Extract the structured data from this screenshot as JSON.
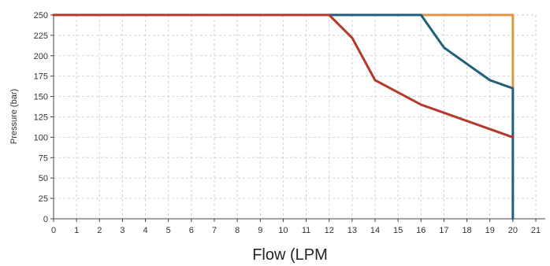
{
  "chart_data": {
    "type": "line",
    "title": "",
    "xlabel": "Flow (LPM",
    "ylabel": "Pressure (bar)",
    "xlim": [
      0,
      21
    ],
    "ylim": [
      0,
      250
    ],
    "x_ticks": [
      "0",
      "1",
      "2",
      "3",
      "4",
      "5",
      "6",
      "7",
      "8",
      "9",
      "10",
      "11",
      "12",
      "13",
      "14",
      "15",
      "16",
      "17",
      "18",
      "19",
      "20",
      "21"
    ],
    "y_ticks": [
      "0",
      "25",
      "50",
      "75",
      "100",
      "125",
      "150",
      "175",
      "200",
      "225",
      "250"
    ],
    "grid": true,
    "legend": "none",
    "series": [
      {
        "color": "#e0963e",
        "x": [
          0,
          20,
          20
        ],
        "y": [
          250,
          250,
          160
        ]
      },
      {
        "color": "#1f5f7a",
        "x": [
          0,
          16,
          17,
          18,
          19,
          20,
          20
        ],
        "y": [
          250,
          250,
          210,
          190,
          170,
          160,
          0
        ]
      },
      {
        "color": "#b33a2b",
        "x": [
          0,
          12,
          13,
          14,
          15,
          16,
          17,
          18,
          19,
          20
        ],
        "y": [
          250,
          250,
          222,
          170,
          155,
          140,
          130,
          120,
          110,
          100
        ]
      }
    ]
  }
}
